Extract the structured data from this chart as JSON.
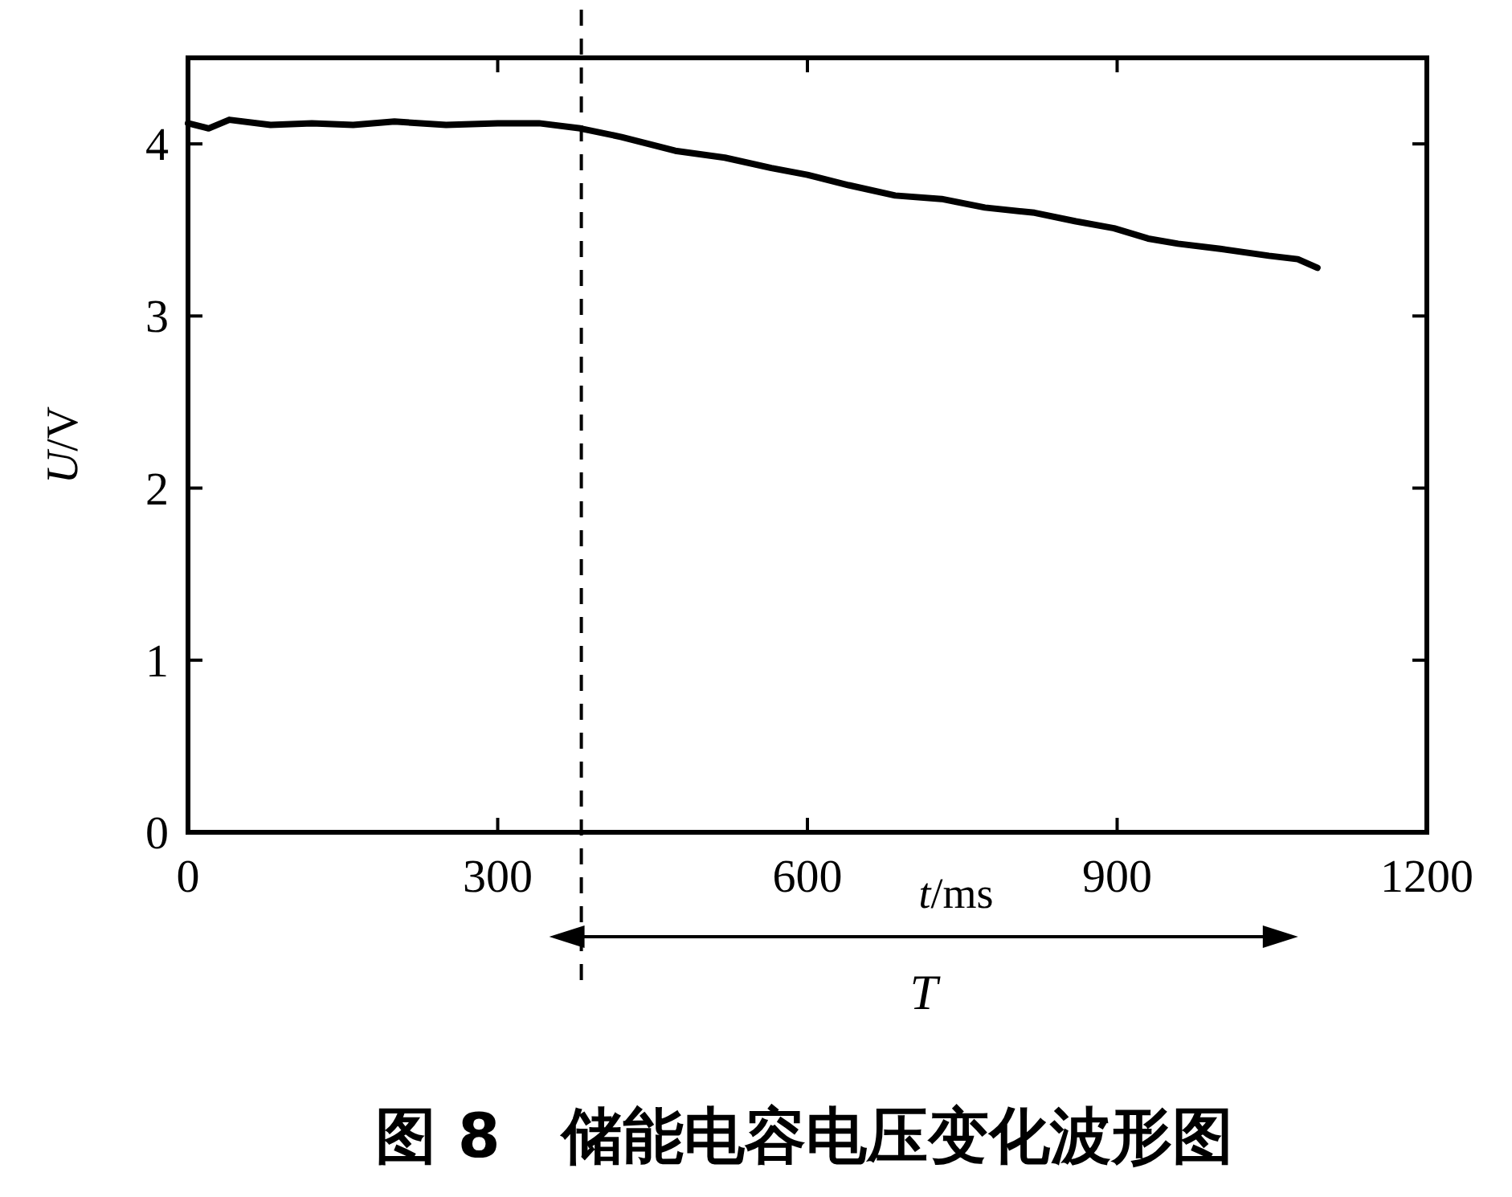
{
  "chart_data": {
    "type": "line",
    "title": "图 8　储能电容电压变化波形图",
    "xlabel": "*t*/ms",
    "ylabel": "*U*/V",
    "x": [
      0,
      20,
      40,
      80,
      120,
      160,
      200,
      250,
      300,
      340,
      380,
      420,
      472,
      520,
      565,
      600,
      640,
      685,
      730,
      772,
      820,
      860,
      897,
      930,
      959,
      1000,
      1047,
      1075,
      1094
    ],
    "series": [
      {
        "color": "#000000",
        "values": [
          4.12,
          4.09,
          4.14,
          4.11,
          4.12,
          4.11,
          4.13,
          4.11,
          4.12,
          4.12,
          4.09,
          4.04,
          3.96,
          3.92,
          3.86,
          3.82,
          3.76,
          3.7,
          3.68,
          3.63,
          3.6,
          3.55,
          3.51,
          3.45,
          3.42,
          3.39,
          3.35,
          3.33,
          3.28
        ]
      }
    ],
    "xlim": [
      0,
      1200
    ],
    "xticks": [
      0,
      300,
      600,
      900,
      1200
    ],
    "ylim": [
      0,
      4.5
    ],
    "yticks": [
      0,
      1,
      2,
      3,
      4
    ],
    "ref_lines": [
      {
        "axis": "x",
        "value": 381,
        "line_style": "dashed",
        "color": "#000000"
      }
    ],
    "annotations": [
      "T"
    ],
    "grid": false,
    "marker": "none",
    "line_style": "solid"
  }
}
